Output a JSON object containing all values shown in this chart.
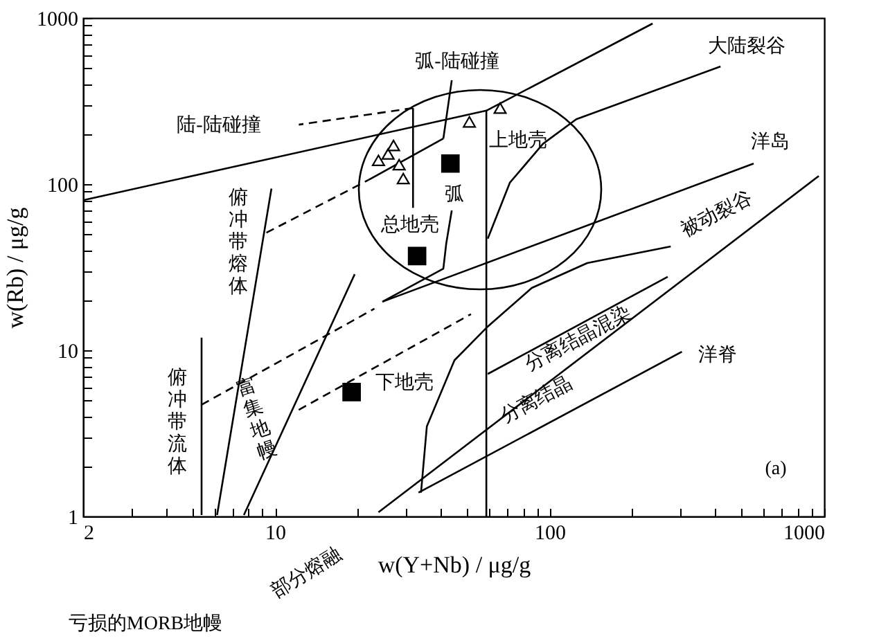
{
  "chart_data": {
    "type": "scatter",
    "xlabel": "w(Y+Nb) / μg/g",
    "ylabel": "w(Rb) / μg/g",
    "log": "xy",
    "grid": false,
    "xlim": [
      2,
      1000
    ],
    "ylim": [
      1,
      1000
    ],
    "xticks": [
      2,
      {
        "value": 3,
        "label": null
      },
      {
        "value": 4,
        "label": null
      },
      {
        "value": 5,
        "label": null
      },
      {
        "value": 6,
        "label": null
      },
      {
        "value": 7,
        "label": null
      },
      {
        "value": 8,
        "label": null
      },
      {
        "value": 9,
        "label": null
      },
      10,
      {
        "value": 20,
        "label": null
      },
      {
        "value": 30,
        "label": null
      },
      {
        "value": 40,
        "label": null
      },
      {
        "value": 50,
        "label": null
      },
      {
        "value": 60,
        "label": null
      },
      {
        "value": 70,
        "label": null
      },
      {
        "value": 80,
        "label": null
      },
      {
        "value": 90,
        "label": null
      },
      100,
      {
        "value": 200,
        "label": null
      },
      {
        "value": 300,
        "label": null
      },
      {
        "value": 400,
        "label": null
      },
      {
        "value": 500,
        "label": null
      },
      {
        "value": 600,
        "label": null
      },
      {
        "value": 700,
        "label": null
      },
      {
        "value": 800,
        "label": null
      },
      {
        "value": 900,
        "label": null
      },
      1000
    ],
    "yticks": [
      1,
      {
        "value": 2,
        "label": null
      },
      {
        "value": 3,
        "label": null
      },
      {
        "value": 4,
        "label": null
      },
      {
        "value": 5,
        "label": null
      },
      {
        "value": 6,
        "label": null
      },
      {
        "value": 7,
        "label": null
      },
      {
        "value": 8,
        "label": null
      },
      {
        "value": 9,
        "label": null
      },
      10,
      {
        "value": 20,
        "label": null
      },
      {
        "value": 30,
        "label": null
      },
      {
        "value": 40,
        "label": null
      },
      {
        "value": 50,
        "label": null
      },
      {
        "value": 60,
        "label": null
      },
      {
        "value": 70,
        "label": null
      },
      {
        "value": 80,
        "label": null
      },
      {
        "value": 90,
        "label": null
      },
      100,
      {
        "value": 200,
        "label": null
      },
      {
        "value": 300,
        "label": null
      },
      {
        "value": 400,
        "label": null
      },
      {
        "value": 500,
        "label": null
      },
      {
        "value": 600,
        "label": null
      },
      {
        "value": 700,
        "label": null
      },
      {
        "value": 800,
        "label": null
      },
      {
        "value": 900,
        "label": null
      },
      1000
    ],
    "series": [
      {
        "type": "line",
        "line_style": "solid",
        "color": "#000000",
        "x": [
          2,
          58.8,
          237
        ],
        "values": [
          80,
          277,
          926
        ]
      },
      {
        "type": "line",
        "line_style": "solid",
        "color": "#000000",
        "x": [
          58.8,
          58.8
        ],
        "values": [
          1,
          277
        ]
      },
      {
        "type": "line",
        "line_style": "solid",
        "color": "#000000",
        "x": [
          23.8,
          955
        ],
        "values": [
          1.06,
          112
        ]
      },
      {
        "type": "line",
        "line_style": "solid",
        "color": "#000000",
        "x": [
          59.5,
          71.6,
          94.6,
          125,
          419
        ],
        "values": [
          47,
          102,
          175,
          246,
          511
        ]
      },
      {
        "type": "line",
        "line_style": "solid",
        "color": "#000000",
        "x": [
          34,
          35.7,
          45,
          59.5,
          86,
          137,
          276
        ],
        "values": [
          1.39,
          3.48,
          8.7,
          13.9,
          23.7,
          33.5,
          42.2
        ]
      },
      {
        "type": "line",
        "line_style": "solid",
        "color": "#000000",
        "x": [
          33.3,
          303
        ],
        "values": [
          1.39,
          9.8
        ]
      },
      {
        "type": "line",
        "line_style": "solid",
        "color": "#000000",
        "x": [
          59.5,
          269
        ],
        "values": [
          7.2,
          27.7
        ]
      },
      {
        "type": "line",
        "line_style": "solid",
        "color": "#000000",
        "x": [
          24.6,
          553
        ],
        "values": [
          19.6,
          133
        ]
      },
      {
        "type": "line",
        "line_style": "dashed",
        "color": "#000000",
        "x": [
          5.4,
          23
        ],
        "values": [
          4.7,
          17.8
        ]
      },
      {
        "type": "line",
        "line_style": "dashed",
        "color": "#000000",
        "x": [
          12.2,
          51.7
        ],
        "values": [
          4.38,
          16.5
        ]
      },
      {
        "type": "line",
        "line_style": "dashed",
        "color": "#000000",
        "x": [
          9.3,
          21.9
        ],
        "values": [
          51,
          106
        ]
      },
      {
        "type": "line",
        "line_style": "solid",
        "color": "#000000",
        "x": [
          21.9,
          41
        ],
        "values": [
          106,
          188
        ]
      },
      {
        "type": "line",
        "line_style": "solid",
        "color": "#000000",
        "x": [
          24.6,
          41,
          42,
          44
        ],
        "values": [
          19.6,
          31,
          43.8,
          69.5
        ]
      },
      {
        "type": "line",
        "line_style": "solid",
        "color": "#000000",
        "x": [
          41,
          44
        ],
        "values": [
          188,
          422
        ]
      },
      {
        "type": "line",
        "line_style": "solid",
        "color": "#000000",
        "x": [
          31.8,
          31.8
        ],
        "values": [
          72,
          287
        ]
      },
      {
        "type": "line",
        "line_style": "dashed",
        "color": "#000000",
        "x": [
          31.8,
          12.2
        ],
        "values": [
          287,
          228
        ]
      },
      {
        "type": "line",
        "line_style": "solid",
        "color": "#000000",
        "x": [
          5.4,
          5.4
        ],
        "values": [
          1.02,
          11.9
        ]
      },
      {
        "type": "line",
        "line_style": "solid",
        "color": "#000000",
        "x": [
          6.15,
          9.7
        ],
        "values": [
          1.02,
          94
        ]
      },
      {
        "type": "line",
        "line_style": "solid",
        "color": "#000000",
        "x": [
          7.7,
          19.5
        ],
        "values": [
          1.02,
          28.7
        ]
      },
      {
        "marker": "triangle",
        "color": "#000000",
        "x": [
          23.8,
          25.8,
          27,
          28.3,
          29.3,
          51,
          66
        ],
        "values": [
          139,
          152,
          171,
          131,
          108,
          237,
          287
        ]
      },
      {
        "marker": "square",
        "color": "#000000",
        "x": [
          19,
          32.9,
          43.5
        ],
        "values": [
          5.6,
          36.9,
          133
        ]
      }
    ],
    "annotations": [
      "大陆裂谷",
      "弧-陆碰撞",
      "陆-陆碰撞",
      "上地壳",
      "洋岛",
      "弧",
      "总地壳",
      "俯冲带熔体",
      "被动裂谷",
      "下地壳",
      "分离结晶混染",
      "洋脊",
      "分离结晶",
      "俯冲带流体",
      "富集地幔",
      "(a)",
      "部分熔融",
      "亏损的MORB地幔"
    ]
  }
}
